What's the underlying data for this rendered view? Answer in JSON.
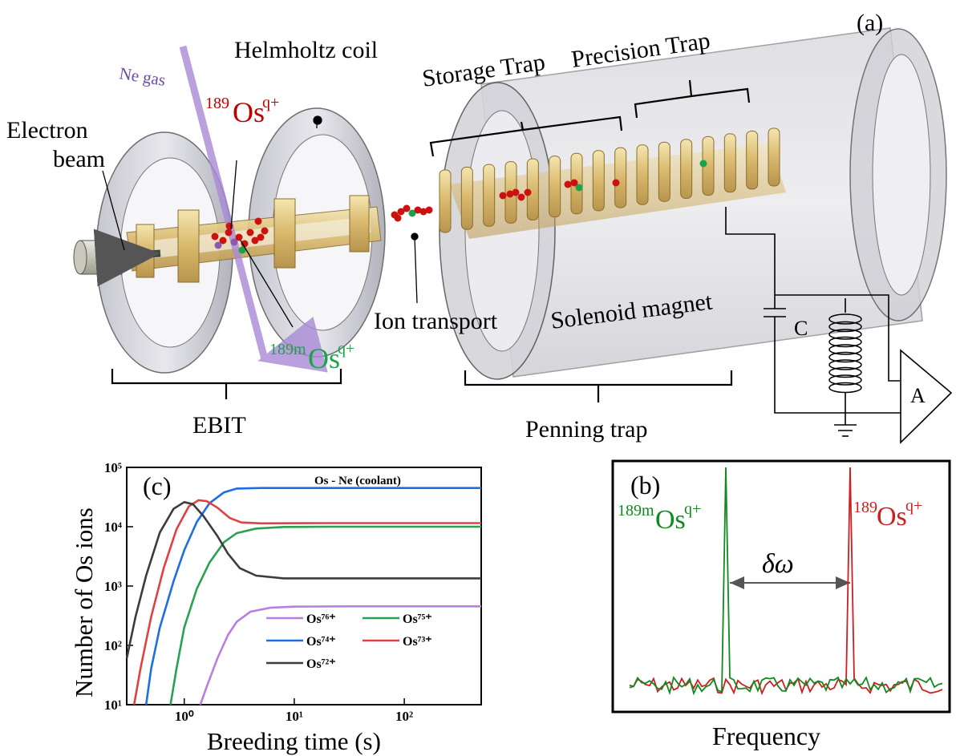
{
  "panel_a": {
    "panel_label": "(a)",
    "ne_gas": "Ne gas",
    "helmholtz": "Helmholtz coil",
    "electron_beam_1": "Electron",
    "electron_beam_2": "beam",
    "os_label_base": "Os",
    "os_sup": "q+",
    "os_iso": "189",
    "osm_iso": "189m",
    "storage_trap": "Storage Trap",
    "precision_trap": "Precision Trap",
    "ion_transport": "Ion transport",
    "solenoid": "Solenoid magnet",
    "ebit": "EBIT",
    "penning": "Penning trap",
    "capacitor": "C",
    "amplifier": "A",
    "colors": {
      "red_ion": "#cc1111",
      "green_ion": "#1aa34a",
      "electrode": "#e2c67a",
      "purple": "#a98ad6"
    }
  },
  "panel_b": {
    "panel_label": "(b)",
    "left_iso": "189m",
    "right_iso": "189",
    "os_base": "Os",
    "os_sup": "q+",
    "delta": "δω",
    "xlabel": "Frequency",
    "colors": {
      "green": "#0f8a1e",
      "red": "#cc1f1f"
    }
  },
  "chart_data": {
    "type": "line",
    "panel_label": "(c)",
    "title": "Os - Ne (coolant)",
    "xlabel": "Breeding time (s)",
    "ylabel": "Number of Os ions",
    "xscale": "log",
    "yscale": "log",
    "xlim": [
      0.3,
      500
    ],
    "ylim": [
      10,
      100000
    ],
    "xticks": [
      "10⁰",
      "10¹",
      "10²"
    ],
    "yticks": [
      "10¹",
      "10²",
      "10³",
      "10⁴",
      "10⁵"
    ],
    "legend_placement": "bottom-right",
    "series": [
      {
        "name": "Os⁷⁶⁺",
        "color": "#b87fe0",
        "points": [
          [
            1.4,
            10
          ],
          [
            1.6,
            20
          ],
          [
            2.0,
            60
          ],
          [
            2.5,
            150
          ],
          [
            3.0,
            250
          ],
          [
            4,
            370
          ],
          [
            6,
            430
          ],
          [
            10,
            450
          ],
          [
            30,
            455
          ],
          [
            100,
            455
          ],
          [
            500,
            455
          ]
        ]
      },
      {
        "name": "Os⁷⁵⁺",
        "color": "#2aa052",
        "points": [
          [
            0.75,
            10
          ],
          [
            0.85,
            40
          ],
          [
            1.0,
            200
          ],
          [
            1.3,
            900
          ],
          [
            1.7,
            2500
          ],
          [
            2.3,
            5500
          ],
          [
            3.0,
            7800
          ],
          [
            4.5,
            9300
          ],
          [
            8,
            9900
          ],
          [
            20,
            10000
          ],
          [
            100,
            10000
          ],
          [
            500,
            10000
          ]
        ]
      },
      {
        "name": "Os⁷⁴⁺",
        "color": "#1d6fe0",
        "points": [
          [
            0.45,
            10
          ],
          [
            0.5,
            40
          ],
          [
            0.6,
            200
          ],
          [
            0.8,
            1200
          ],
          [
            1.0,
            4000
          ],
          [
            1.3,
            12000
          ],
          [
            1.7,
            25000
          ],
          [
            2.3,
            38000
          ],
          [
            3.0,
            44000
          ],
          [
            5,
            45000
          ],
          [
            20,
            45000
          ],
          [
            100,
            45000
          ],
          [
            500,
            45000
          ]
        ]
      },
      {
        "name": "Os⁷³⁺",
        "color": "#e04141",
        "points": [
          [
            0.35,
            10
          ],
          [
            0.4,
            40
          ],
          [
            0.5,
            300
          ],
          [
            0.65,
            2000
          ],
          [
            0.85,
            9000
          ],
          [
            1.1,
            22000
          ],
          [
            1.35,
            28000
          ],
          [
            1.6,
            27000
          ],
          [
            2.0,
            21000
          ],
          [
            2.6,
            14000
          ],
          [
            3.3,
            11800
          ],
          [
            5,
            11400
          ],
          [
            20,
            11500
          ],
          [
            100,
            11500
          ],
          [
            500,
            11500
          ]
        ]
      },
      {
        "name": "Os⁷²⁺",
        "color": "#3c3c3c",
        "points": [
          [
            0.3,
            60
          ],
          [
            0.36,
            300
          ],
          [
            0.45,
            1500
          ],
          [
            0.6,
            8000
          ],
          [
            0.8,
            20000
          ],
          [
            1.0,
            26000
          ],
          [
            1.2,
            24000
          ],
          [
            1.5,
            15000
          ],
          [
            2.0,
            7000
          ],
          [
            2.5,
            3500
          ],
          [
            3.2,
            2000
          ],
          [
            4.5,
            1500
          ],
          [
            8,
            1350
          ],
          [
            20,
            1350
          ],
          [
            100,
            1350
          ],
          [
            500,
            1350
          ]
        ]
      }
    ]
  }
}
